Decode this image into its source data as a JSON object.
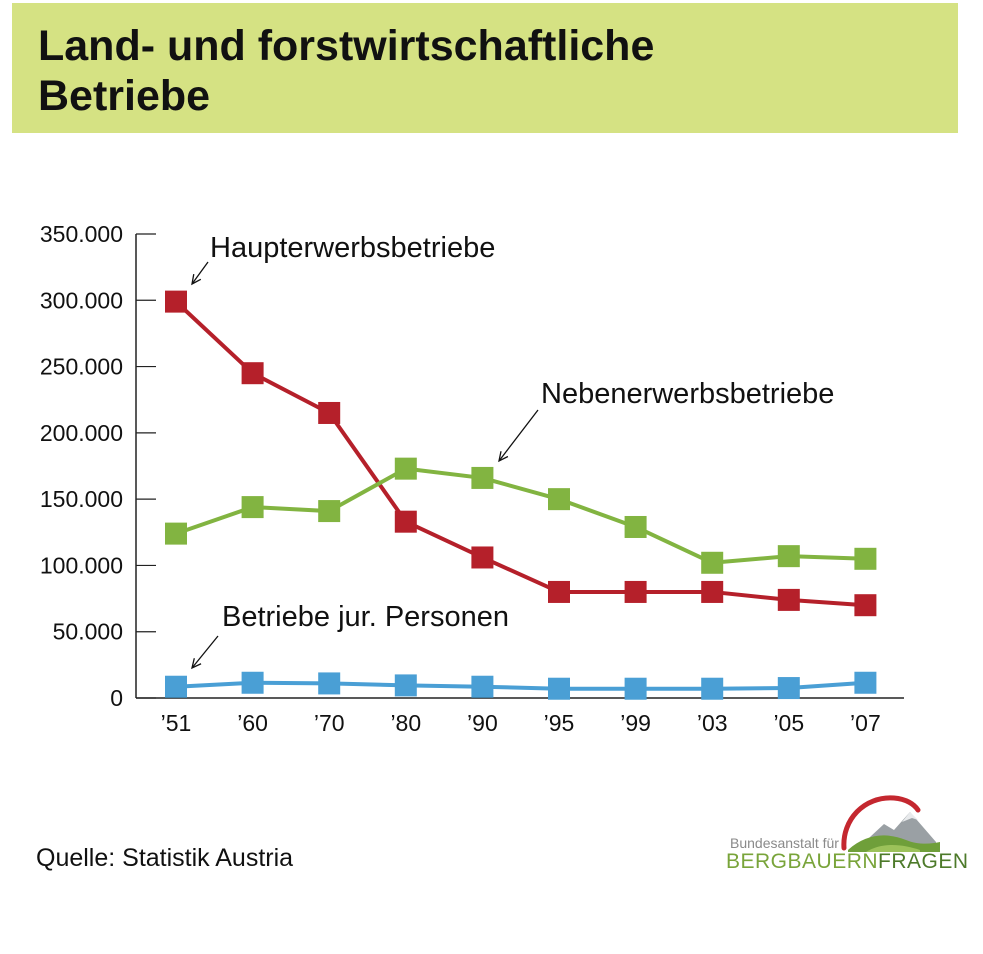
{
  "title_line1": "Land- und forstwirtschaftliche",
  "title_line2": "Betriebe",
  "source": "Quelle: Statistik Austria",
  "logo": {
    "small": "Bundesanstalt für",
    "big_a": "BERGBAUERN",
    "big_b": "FRAGEN"
  },
  "colors": {
    "title_bg": "#d5e283",
    "haupt": "#b5202a",
    "neben": "#82b441",
    "jur": "#4a9fd5",
    "axis": "#222222"
  },
  "chart_data": {
    "type": "line",
    "categories": [
      "’51",
      "’60",
      "’70",
      "’80",
      "’90",
      "’95",
      "’99",
      "’03",
      "’05",
      "’07"
    ],
    "ylim": [
      0,
      350000
    ],
    "yticks": [
      0,
      50000,
      100000,
      150000,
      200000,
      250000,
      300000,
      350000
    ],
    "ytick_labels": [
      "0",
      "50.000",
      "100.000",
      "150.000",
      "200.000",
      "250.000",
      "300.000",
      "350.000"
    ],
    "grid": false,
    "series": [
      {
        "key": "haupt",
        "name": "Haupterwerbsbetriebe",
        "values": [
          299000,
          245000,
          215000,
          133000,
          106000,
          80000,
          80000,
          80000,
          74000,
          70000
        ]
      },
      {
        "key": "neben",
        "name": "Nebenerwerbsbetriebe",
        "values": [
          124000,
          144000,
          141000,
          173000,
          166000,
          150000,
          129000,
          102000,
          107000,
          105000
        ]
      },
      {
        "key": "jur",
        "name": "Betriebe jur. Personen",
        "values": [
          8500,
          11500,
          11000,
          9500,
          8500,
          7000,
          7000,
          7000,
          7500,
          11500
        ]
      }
    ]
  }
}
